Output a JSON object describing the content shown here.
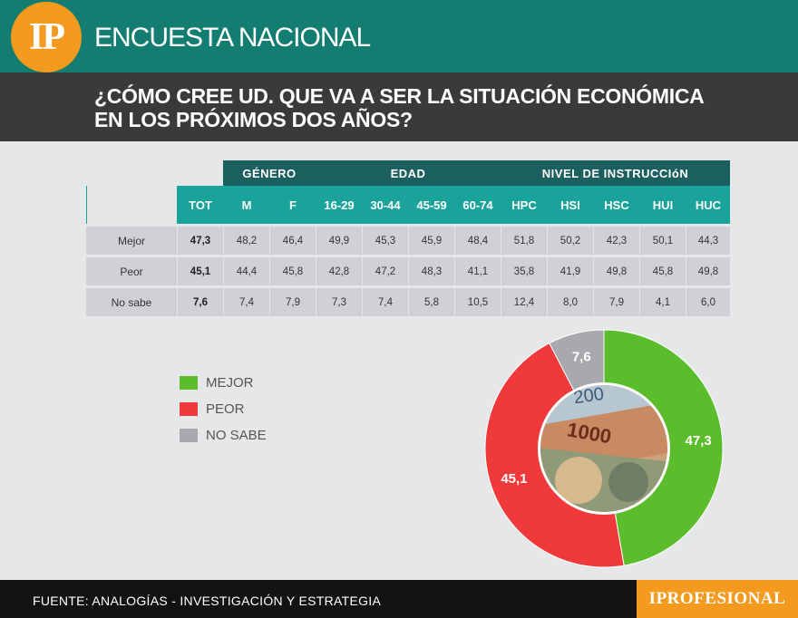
{
  "header": {
    "logo": "IP",
    "title": "ENCUESTA NACIONAL"
  },
  "question": {
    "line1": "¿CÓMO CREE UD. QUE VA A SER LA SITUACIÓN ECONÓMICA",
    "line2": "EN LOS PRÓXIMOS DOS AÑOS?"
  },
  "table": {
    "groups": {
      "genero": "GÉNERO",
      "edad": "EDAD",
      "instruccion": "NIVEL DE INSTRUCCIóN"
    },
    "columns": [
      "TOT",
      "M",
      "F",
      "16-29",
      "30-44",
      "45-59",
      "60-74",
      "HPC",
      "HSI",
      "HSC",
      "HUI",
      "HUC"
    ],
    "rows": [
      {
        "label": "Mejor",
        "values": [
          "47,3",
          "48,2",
          "46,4",
          "49,9",
          "45,3",
          "45,9",
          "48,4",
          "51,8",
          "50,2",
          "42,3",
          "50,1",
          "44,3"
        ]
      },
      {
        "label": "Peor",
        "values": [
          "45,1",
          "44,4",
          "45,8",
          "42,8",
          "47,2",
          "48,3",
          "41,1",
          "35,8",
          "41,9",
          "49,8",
          "45,8",
          "49,8"
        ]
      },
      {
        "label": "No sabe",
        "values": [
          "7,6",
          "7,4",
          "7,9",
          "7,3",
          "7,4",
          "5,8",
          "10,5",
          "12,4",
          "8,0",
          "7,9",
          "4,1",
          "6,0"
        ]
      }
    ]
  },
  "legend": [
    {
      "label": "MEJOR",
      "color": "#5bbd2b"
    },
    {
      "label": "PEOR",
      "color": "#f0393b"
    },
    {
      "label": "NO SABE",
      "color": "#a7a9ac"
    }
  ],
  "chart_data": {
    "type": "pie",
    "categories": [
      "MEJOR",
      "PEOR",
      "NO SABE"
    ],
    "values": [
      47.3,
      45.1,
      7.6
    ],
    "labels": [
      "47,3",
      "45,1",
      "7,6"
    ],
    "colors": [
      "#5bbd2b",
      "#f0393b",
      "#a7a9ac"
    ]
  },
  "photo": {
    "note_200": "200",
    "note_1000": "1000"
  },
  "footer": {
    "source": "FUENTE: ANALOGÍAS - INVESTIGACIÓN Y ESTRATEGIA",
    "brand": "IPROFESIONAL"
  }
}
